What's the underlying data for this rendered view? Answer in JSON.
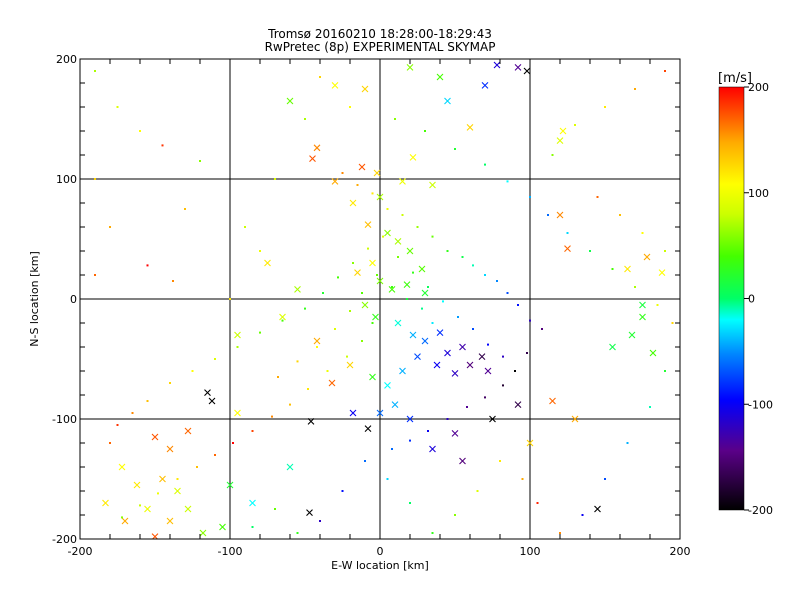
{
  "chart_data": {
    "type": "scatter",
    "title": "Tromsø 20160210 18:28:00-18:29:43",
    "subtitle": "RwPretec (8p) EXPERIMENTAL SKYMAP",
    "xlabel": "E-W location [km]",
    "ylabel": "N-S location [km]",
    "xlim": [
      -200,
      200
    ],
    "ylim": [
      -200,
      200
    ],
    "xticks": [
      -200,
      -100,
      0,
      100,
      200
    ],
    "yticks": [
      -200,
      -100,
      0,
      100,
      200
    ],
    "grid": true,
    "colorbar": {
      "label": "[m/s]",
      "min": -200,
      "max": 200,
      "ticks": [
        200,
        100,
        0,
        -100,
        -200
      ],
      "placement": "right"
    },
    "series": [
      {
        "marker": "x",
        "points": [
          [
            -42,
            126,
            160
          ],
          [
            -45,
            117,
            175
          ],
          [
            -30,
            98,
            150
          ],
          [
            -12,
            110,
            175
          ],
          [
            -2,
            105,
            130
          ],
          [
            15,
            98,
            100
          ],
          [
            22,
            118,
            110
          ],
          [
            35,
            95,
            80
          ],
          [
            -18,
            80,
            120
          ],
          [
            -8,
            62,
            140
          ],
          [
            5,
            55,
            60
          ],
          [
            12,
            48,
            70
          ],
          [
            20,
            40,
            50
          ],
          [
            28,
            25,
            45
          ],
          [
            -5,
            30,
            110
          ],
          [
            -15,
            22,
            130
          ],
          [
            0,
            15,
            55
          ],
          [
            8,
            8,
            40
          ],
          [
            18,
            12,
            35
          ],
          [
            30,
            5,
            20
          ],
          [
            -10,
            -5,
            60
          ],
          [
            -3,
            -15,
            30
          ],
          [
            12,
            -20,
            -15
          ],
          [
            22,
            -30,
            -40
          ],
          [
            30,
            -35,
            -60
          ],
          [
            40,
            -28,
            -80
          ],
          [
            45,
            -45,
            -110
          ],
          [
            55,
            -40,
            -130
          ],
          [
            60,
            -55,
            -150
          ],
          [
            68,
            -48,
            -170
          ],
          [
            72,
            -60,
            -140
          ],
          [
            50,
            -62,
            -120
          ],
          [
            38,
            -55,
            -100
          ],
          [
            25,
            -48,
            -70
          ],
          [
            15,
            -60,
            -40
          ],
          [
            5,
            -72,
            -20
          ],
          [
            -5,
            -65,
            30
          ],
          [
            -20,
            -55,
            130
          ],
          [
            -32,
            -70,
            170
          ],
          [
            -42,
            -35,
            150
          ],
          [
            -55,
            8,
            70
          ],
          [
            -65,
            -15,
            90
          ],
          [
            -75,
            30,
            120
          ],
          [
            -95,
            -30,
            80
          ],
          [
            -115,
            -78,
            -200
          ],
          [
            -112,
            -85,
            -200
          ],
          [
            -95,
            -95,
            110
          ],
          [
            -150,
            -115,
            175
          ],
          [
            -140,
            -125,
            160
          ],
          [
            -128,
            -110,
            170
          ],
          [
            -145,
            -150,
            140
          ],
          [
            -162,
            -155,
            120
          ],
          [
            -172,
            -140,
            110
          ],
          [
            -155,
            -175,
            100
          ],
          [
            -135,
            -160,
            90
          ],
          [
            -128,
            -175,
            80
          ],
          [
            -140,
            -185,
            140
          ],
          [
            -118,
            -195,
            60
          ],
          [
            -105,
            -190,
            40
          ],
          [
            -150,
            -198,
            175
          ],
          [
            -170,
            -185,
            150
          ],
          [
            -183,
            -170,
            120
          ],
          [
            -100,
            -155,
            20
          ],
          [
            -85,
            -170,
            -20
          ],
          [
            -60,
            -140,
            -10
          ],
          [
            -47,
            -178,
            -200
          ],
          [
            -46,
            -102,
            -200
          ],
          [
            -8,
            -108,
            -200
          ],
          [
            -18,
            -95,
            -100
          ],
          [
            0,
            -95,
            -60
          ],
          [
            10,
            -88,
            -40
          ],
          [
            20,
            -100,
            -80
          ],
          [
            35,
            -125,
            -110
          ],
          [
            50,
            -112,
            -140
          ],
          [
            55,
            -135,
            -150
          ],
          [
            75,
            -100,
            -200
          ],
          [
            92,
            -88,
            -170
          ],
          [
            100,
            -120,
            130
          ],
          [
            115,
            -85,
            170
          ],
          [
            130,
            -100,
            150
          ],
          [
            145,
            -175,
            -200
          ],
          [
            155,
            -40,
            10
          ],
          [
            168,
            -30,
            20
          ],
          [
            175,
            -15,
            30
          ],
          [
            182,
            -45,
            40
          ],
          [
            175,
            -5,
            15
          ],
          [
            165,
            25,
            120
          ],
          [
            178,
            35,
            150
          ],
          [
            188,
            22,
            110
          ],
          [
            120,
            70,
            160
          ],
          [
            125,
            42,
            170
          ],
          [
            122,
            140,
            110
          ],
          [
            120,
            132,
            90
          ],
          [
            -60,
            165,
            50
          ],
          [
            -30,
            178,
            110
          ],
          [
            -10,
            175,
            130
          ],
          [
            20,
            193,
            60
          ],
          [
            40,
            185,
            40
          ],
          [
            45,
            165,
            -30
          ],
          [
            70,
            178,
            -80
          ],
          [
            78,
            195,
            -110
          ],
          [
            92,
            193,
            -140
          ],
          [
            98,
            190,
            -200
          ],
          [
            60,
            143,
            130
          ],
          [
            0,
            85,
            70
          ]
        ]
      },
      {
        "marker": "dot",
        "points": [
          [
            -25,
            105,
            160
          ],
          [
            -15,
            95,
            150
          ],
          [
            -5,
            88,
            120
          ],
          [
            5,
            75,
            100
          ],
          [
            15,
            70,
            80
          ],
          [
            25,
            60,
            65
          ],
          [
            35,
            52,
            50
          ],
          [
            45,
            40,
            30
          ],
          [
            55,
            35,
            10
          ],
          [
            62,
            28,
            -10
          ],
          [
            70,
            20,
            -30
          ],
          [
            78,
            15,
            -50
          ],
          [
            85,
            5,
            -70
          ],
          [
            92,
            -5,
            -90
          ],
          [
            100,
            -18,
            -120
          ],
          [
            108,
            -25,
            -150
          ],
          [
            98,
            -45,
            -170
          ],
          [
            90,
            -60,
            -200
          ],
          [
            82,
            -72,
            -180
          ],
          [
            70,
            -82,
            -160
          ],
          [
            58,
            -90,
            -140
          ],
          [
            45,
            -100,
            -120
          ],
          [
            32,
            -110,
            -100
          ],
          [
            20,
            -118,
            -80
          ],
          [
            8,
            -125,
            -60
          ],
          [
            -5,
            -20,
            40
          ],
          [
            -12,
            -35,
            60
          ],
          [
            -22,
            -48,
            80
          ],
          [
            -35,
            -60,
            100
          ],
          [
            -48,
            -75,
            120
          ],
          [
            -60,
            -88,
            140
          ],
          [
            -72,
            -98,
            160
          ],
          [
            -85,
            -110,
            180
          ],
          [
            -98,
            -120,
            200
          ],
          [
            -110,
            -130,
            170
          ],
          [
            -122,
            -140,
            140
          ],
          [
            -135,
            -150,
            120
          ],
          [
            -148,
            -162,
            100
          ],
          [
            -160,
            -172,
            80
          ],
          [
            -172,
            -182,
            60
          ],
          [
            -180,
            -120,
            170
          ],
          [
            -175,
            -105,
            185
          ],
          [
            -165,
            -95,
            160
          ],
          [
            -155,
            -85,
            140
          ],
          [
            -140,
            -70,
            130
          ],
          [
            -125,
            -60,
            110
          ],
          [
            -110,
            -50,
            90
          ],
          [
            -95,
            -40,
            70
          ],
          [
            -80,
            -28,
            50
          ],
          [
            -65,
            -18,
            40
          ],
          [
            -50,
            -8,
            30
          ],
          [
            -38,
            5,
            20
          ],
          [
            -28,
            18,
            40
          ],
          [
            -18,
            30,
            60
          ],
          [
            -8,
            42,
            80
          ],
          [
            2,
            52,
            90
          ],
          [
            12,
            35,
            55
          ],
          [
            22,
            22,
            30
          ],
          [
            32,
            10,
            5
          ],
          [
            42,
            -2,
            -20
          ],
          [
            52,
            -15,
            -45
          ],
          [
            62,
            -25,
            -70
          ],
          [
            72,
            -38,
            -95
          ],
          [
            82,
            -48,
            -120
          ],
          [
            35,
            -20,
            -25
          ],
          [
            28,
            -8,
            -5
          ],
          [
            18,
            0,
            15
          ],
          [
            8,
            10,
            35
          ],
          [
            -2,
            20,
            50
          ],
          [
            -12,
            5,
            45
          ],
          [
            -20,
            -10,
            70
          ],
          [
            -30,
            -25,
            90
          ],
          [
            -42,
            -40,
            110
          ],
          [
            -55,
            -52,
            130
          ],
          [
            -68,
            -65,
            150
          ],
          [
            -145,
            128,
            185
          ],
          [
            -138,
            15,
            160
          ],
          [
            -155,
            28,
            200
          ],
          [
            -130,
            75,
            140
          ],
          [
            -100,
            0,
            120
          ],
          [
            -120,
            115,
            60
          ],
          [
            -80,
            40,
            100
          ],
          [
            -90,
            60,
            80
          ],
          [
            -70,
            100,
            90
          ],
          [
            -50,
            150,
            70
          ],
          [
            -40,
            185,
            130
          ],
          [
            -20,
            160,
            110
          ],
          [
            10,
            150,
            60
          ],
          [
            30,
            140,
            40
          ],
          [
            50,
            125,
            20
          ],
          [
            70,
            112,
            0
          ],
          [
            85,
            98,
            -20
          ],
          [
            100,
            85,
            -40
          ],
          [
            112,
            70,
            -60
          ],
          [
            125,
            55,
            -30
          ],
          [
            140,
            40,
            10
          ],
          [
            155,
            25,
            40
          ],
          [
            170,
            10,
            70
          ],
          [
            185,
            -5,
            100
          ],
          [
            195,
            -20,
            130
          ],
          [
            190,
            -60,
            20
          ],
          [
            180,
            -90,
            -10
          ],
          [
            165,
            -120,
            -40
          ],
          [
            150,
            -150,
            -70
          ],
          [
            135,
            -180,
            -100
          ],
          [
            120,
            -195,
            160
          ],
          [
            105,
            -170,
            190
          ],
          [
            95,
            -150,
            150
          ],
          [
            80,
            -135,
            120
          ],
          [
            65,
            -160,
            90
          ],
          [
            50,
            -180,
            60
          ],
          [
            35,
            -195,
            30
          ],
          [
            20,
            -170,
            0
          ],
          [
            5,
            -150,
            -30
          ],
          [
            -10,
            -135,
            -60
          ],
          [
            -25,
            -160,
            -90
          ],
          [
            -40,
            -185,
            -120
          ],
          [
            -55,
            -195,
            30
          ],
          [
            -70,
            -175,
            50
          ],
          [
            -85,
            -190,
            0
          ],
          [
            145,
            85,
            170
          ],
          [
            160,
            70,
            140
          ],
          [
            175,
            55,
            110
          ],
          [
            190,
            40,
            80
          ],
          [
            115,
            120,
            60
          ],
          [
            130,
            145,
            90
          ],
          [
            150,
            160,
            120
          ],
          [
            170,
            175,
            150
          ],
          [
            190,
            190,
            180
          ],
          [
            -190,
            190,
            70
          ],
          [
            -175,
            160,
            90
          ],
          [
            -160,
            140,
            110
          ],
          [
            -190,
            100,
            130
          ],
          [
            -180,
            60,
            150
          ],
          [
            -190,
            20,
            170
          ]
        ]
      }
    ]
  }
}
